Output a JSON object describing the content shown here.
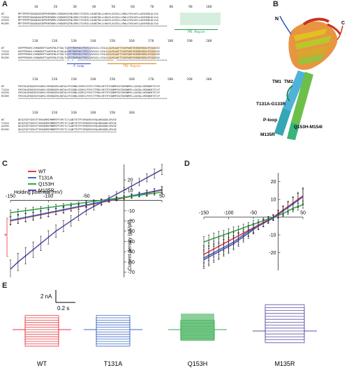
{
  "panels": {
    "a": "A",
    "b": "B",
    "c": "C",
    "d": "D",
    "e": "E"
  },
  "alignment": {
    "variants": [
      "WT",
      "T131A",
      "Q153H",
      "M135R"
    ],
    "blocks": [
      {
        "ruler": "         10        20        30        40        50        60        70        80        90       100",
        "rows": [
          "MPTTMTMTSDAQKAGCDPMVKPQRRLVSKDGRSQTNLSRHLTSISRILLHLNGTWLLLHAVVLACGSLLLRWLLFAVLWYLLAAVHGDLQLVLD",
          "MPTTMTMTSDAQKAGCDPMVKPQRRLVSKDGRSQTNLSRHLTSISRILLHLNGTWLLLHAVVLACGSLLLRWLLFAVLWYLLAAVHGDLQLVLD",
          "MPTTMTMTSDAQKAGCDPMVKPQRRLVSKDGRSQTNLSRHLTSISRILLHLNGTWLLLHAVVLACGSLLLRWLLFAVLWYLLAAVHGDLQLVLD",
          "MPTTMTMTSDAQKAGCDPMVKPQRRLVSKDGRSQTNLSRHLTSISRILLHLNGTWLLLHAVVLACGSLLLRWLLFAVLWYLLAAVHGDLQLVLD"
        ],
        "cons": "****************************************************************************************************",
        "region": "TM1 Region"
      },
      {
        "ruler": "        110       120       130       140       150       160       170       180       190       200",
        "rows": [
          "HSPPPRGHVLVVKWGRSPTAAPSFNLETGQLTLGTFTMSPHACTPQTLVAFAILLVIGLLLGLMLAAFTTGAPVAKFSRRQRCRDDLPISQAYAV",
          "HSPPPRGHVLVVKWGRSPTAAPSFNLETGQLALGRFTMSPHACTPQTLVAFAILLVIGLLLGLMLAAFTTGAPVAKFSRRQRCRDDLPISQAYAV",
          "HSPPPRGHVLVVKWGRSPTAAPSFNLETGQLTLGTFTMSPHACTPQTLVAFAILLVIGLLHILMLAAFTTGAPVAKFSRRQRCRDDLPISQAYAV",
          "HSPPPRGHVLVVKWGRSPTAAPSFNLETGQLTLGTFTRSPHACTPQTLVAFAILLVIGLLLGLMLAAFTTGAPVAKFSRRQRCRDDLPISQAYAV"
        ],
        "cons": "*******************************..*..*...************************..**********************************",
        "region_loop": "P Loop",
        "region": "TM2 Region"
      },
      {
        "ruler": "        210       220       230       240       250       260       270       280       290       300",
        "rows": [
          "FRVCNLQFDQVDVSVAHVLEEEKDGERLHQTALEFSIDNLGSRECLPSPLTTFRKLHFSTFSSNMPSSGTWSRWPELLQGVQLLMGEWKRTSTLP",
          "FRVCNLQFDQVDVSVAHVLEEEKDGERLHQTALEFSIDNLGSRECLPSPLTTFRKLHFSTFSSNMPSSGTWSRWPELLQGVQLLMGEWKRTSTLP",
          "FRVCNLQFDQVDVSVAHVLEEEKDGERLHQTALEFSIDNLGSRECLPSPLTTFRKLHFSTFSSNMPSSGTWSRWPELLQGVQLLMGEWKRTSTLP",
          "FRVCNLQFDQVDVSVAHVLEEEKDGERLHQTALEFSIDNLGSRECLPSPLTTFRKLHFSTFSSNMPSSGTWSRWPELLQGVQLLMGEWKRTSTLP"
        ],
        "cons": "****************************************************************************************************"
      },
      {
        "ruler": "        310       320       330       340       350       360",
        "rows": [
          "DEIQTQTFSEKVTTHVEQMRIPNMMTPTVPCTLTLANTTETPTSPGKERVVVQLWRGGDELSRVSE",
          "DEIQTQTFSEKVTTHVEQMRIPNMMTPTVPCTLTLANTTETPTSPGKERVVVQLWRGGDELSRVSE",
          "DEIQTQTFSEKVTTHVEQMRIPNMMTPTVPCTLTLANTTETPTSPGKERVVVQLWRGGDELSRVSE",
          "DEIQTQTFSEKVTTHVEQMRIPNMMTPTVPCTLTLANTTETPTSPGKERVVVQLWRGGDELSRVSE"
        ],
        "cons": "******************************************************************"
      }
    ]
  },
  "structure": {
    "labels": [
      "N",
      "C",
      "TM1",
      "TM2",
      "T131A-G133R",
      "P-loop",
      "Q153H-M154I",
      "M135R"
    ]
  },
  "chart_c": {
    "type": "line",
    "xlabel": "Holding potential (mV)",
    "ylabel": "Current density (pA/pF)",
    "x_ticks": [
      "-150",
      "-100",
      "-50",
      "50"
    ],
    "y_ticks": [
      "20",
      "10",
      "-10",
      "-20",
      "-30",
      "-40",
      "-50",
      "-60",
      "-70"
    ],
    "significance": "*",
    "legend_position": "top-left"
  },
  "chart_d": {
    "type": "line",
    "x_ticks": [
      "-150",
      "-100",
      "-50",
      "50"
    ],
    "y_ticks": [
      "20",
      "10",
      "-10",
      "-20"
    ],
    "legend_position": "none"
  },
  "chart_data": [
    {
      "type": "line",
      "xlabel": "Holding potential (mV)",
      "ylabel": "Current density (pA/pF)",
      "xlim": [
        -150,
        50
      ],
      "ylim": [
        -75,
        35
      ],
      "x": [
        -150,
        -140,
        -130,
        -120,
        -110,
        -100,
        -90,
        -80,
        -70,
        -60,
        -50,
        -40,
        -30,
        -20,
        -10,
        0,
        10,
        20,
        30,
        40,
        50
      ],
      "series": [
        {
          "name": "WT",
          "color": "#e8373f",
          "values": [
            -20,
            -18.5,
            -17,
            -15.5,
            -14,
            -12.5,
            -11,
            -9.5,
            -8,
            -6.5,
            -5,
            -3.5,
            -2,
            -0.5,
            1,
            2.5,
            4,
            5.5,
            7,
            8.5,
            10
          ],
          "err": [
            4,
            4,
            4,
            4,
            3.5,
            3.5,
            3,
            3,
            2.5,
            2.5,
            2,
            2,
            2,
            1.5,
            1.5,
            1.5,
            2,
            2,
            2.5,
            2.5,
            3
          ]
        },
        {
          "name": "T131A",
          "color": "#3b68c4",
          "values": [
            -19.5,
            -18,
            -16.5,
            -15,
            -13.5,
            -12,
            -10.5,
            -9,
            -7.5,
            -6,
            -4.5,
            -3,
            -1.5,
            0,
            1.5,
            3,
            4.5,
            6,
            7.5,
            9,
            10.5
          ],
          "err": [
            4,
            4,
            4,
            3.5,
            3.5,
            3.5,
            3,
            3,
            2.5,
            2.5,
            2,
            2,
            2,
            1.5,
            1.5,
            1.5,
            2,
            2,
            2.5,
            2.5,
            3
          ]
        },
        {
          "name": "Q153H",
          "color": "#2faa48",
          "values": [
            -12,
            -11,
            -10,
            -9,
            -8,
            -7,
            -6,
            -5,
            -4,
            -3,
            -2,
            -1,
            0,
            1,
            2,
            3,
            4,
            5,
            6,
            7,
            8
          ],
          "err": [
            2.5,
            2.5,
            2.5,
            2.5,
            2,
            2,
            2,
            2,
            1.5,
            1.5,
            1.5,
            1.5,
            1.5,
            1.5,
            1.5,
            1.5,
            1.5,
            1.5,
            2,
            2,
            2
          ]
        },
        {
          "name": "M135R",
          "color": "#5a50a8",
          "values": [
            -67,
            -60,
            -54,
            -48,
            -42,
            -36,
            -30,
            -25,
            -20,
            -15,
            -10,
            -6,
            -2,
            2,
            6,
            10,
            14,
            18,
            22,
            26,
            30
          ],
          "err": [
            9,
            8.5,
            8,
            7.5,
            7,
            6.5,
            6,
            5.5,
            5,
            4.5,
            4,
            3.5,
            3,
            2.5,
            2.5,
            2.5,
            3,
            3.5,
            4,
            4.5,
            5
          ]
        }
      ]
    },
    {
      "type": "line",
      "xlim": [
        -150,
        50
      ],
      "ylim": [
        -30,
        25
      ],
      "x": [
        -150,
        -140,
        -130,
        -120,
        -110,
        -100,
        -90,
        -80,
        -70,
        -60,
        -50,
        -40,
        -30,
        -20,
        -10,
        0,
        10,
        20,
        30,
        40,
        50
      ],
      "series": [
        {
          "name": "WT",
          "color": "#e8373f",
          "values": [
            -21,
            -19.5,
            -18,
            -16.5,
            -15,
            -13.5,
            -12,
            -10.5,
            -9,
            -7.5,
            -6,
            -4.5,
            -3,
            -1.5,
            0,
            2,
            4,
            6,
            8,
            10,
            12
          ],
          "err": [
            5,
            5,
            4.5,
            4.5,
            4,
            4,
            3.5,
            3.5,
            3,
            3,
            2.5,
            2,
            2,
            1.5,
            1.5,
            2,
            2.5,
            3,
            3.5,
            4,
            4.5
          ]
        },
        {
          "name": "T131A",
          "color": "#3b68c4",
          "values": [
            -23,
            -21.5,
            -20,
            -18.5,
            -17,
            -15.5,
            -14,
            -12,
            -10,
            -8,
            -6.5,
            -5,
            -3.5,
            -2,
            -0.5,
            1.5,
            3.5,
            5.5,
            7.5,
            9.5,
            11.5
          ],
          "err": [
            5,
            5,
            4.5,
            4.5,
            4,
            4,
            3.5,
            3.5,
            3,
            3,
            2.5,
            2,
            2,
            1.5,
            1.5,
            2,
            2.5,
            3,
            3.5,
            4,
            4.5
          ]
        },
        {
          "name": "Q153H",
          "color": "#2faa48",
          "values": [
            -14,
            -13,
            -12,
            -11,
            -10,
            -9,
            -8,
            -7,
            -6,
            -5,
            -4,
            -3,
            -2,
            -1,
            0,
            1,
            2,
            3.5,
            5,
            6,
            7
          ],
          "err": [
            3,
            3,
            3,
            3,
            2.5,
            2.5,
            2.5,
            2,
            2,
            2,
            2,
            1.5,
            1.5,
            1.5,
            1.5,
            1.5,
            1.5,
            2,
            2,
            2,
            2
          ]
        },
        {
          "name": "M135R",
          "color": "#5a50a8",
          "values": [
            -24,
            -22.5,
            -21,
            -19.5,
            -18,
            -16.5,
            -15,
            -13,
            -11,
            -9,
            -7,
            -5,
            -3.5,
            -2,
            -0.5,
            1.5,
            3.5,
            5.5,
            7.5,
            9.5,
            11.5
          ],
          "err": [
            5,
            5,
            4.5,
            4.5,
            4,
            4,
            3.5,
            3.5,
            3,
            3,
            2.5,
            2,
            2,
            1.5,
            1.5,
            2,
            2.5,
            3,
            3.5,
            4,
            4.5
          ]
        }
      ]
    }
  ],
  "traces": {
    "scale_y": "2 nA",
    "scale_x": "0.2 s",
    "labels": [
      "WT",
      "T131A",
      "Q153H",
      "M135R"
    ],
    "colors": [
      "#e8373f",
      "#3b68c4",
      "#2faa48",
      "#5a50a8"
    ]
  }
}
